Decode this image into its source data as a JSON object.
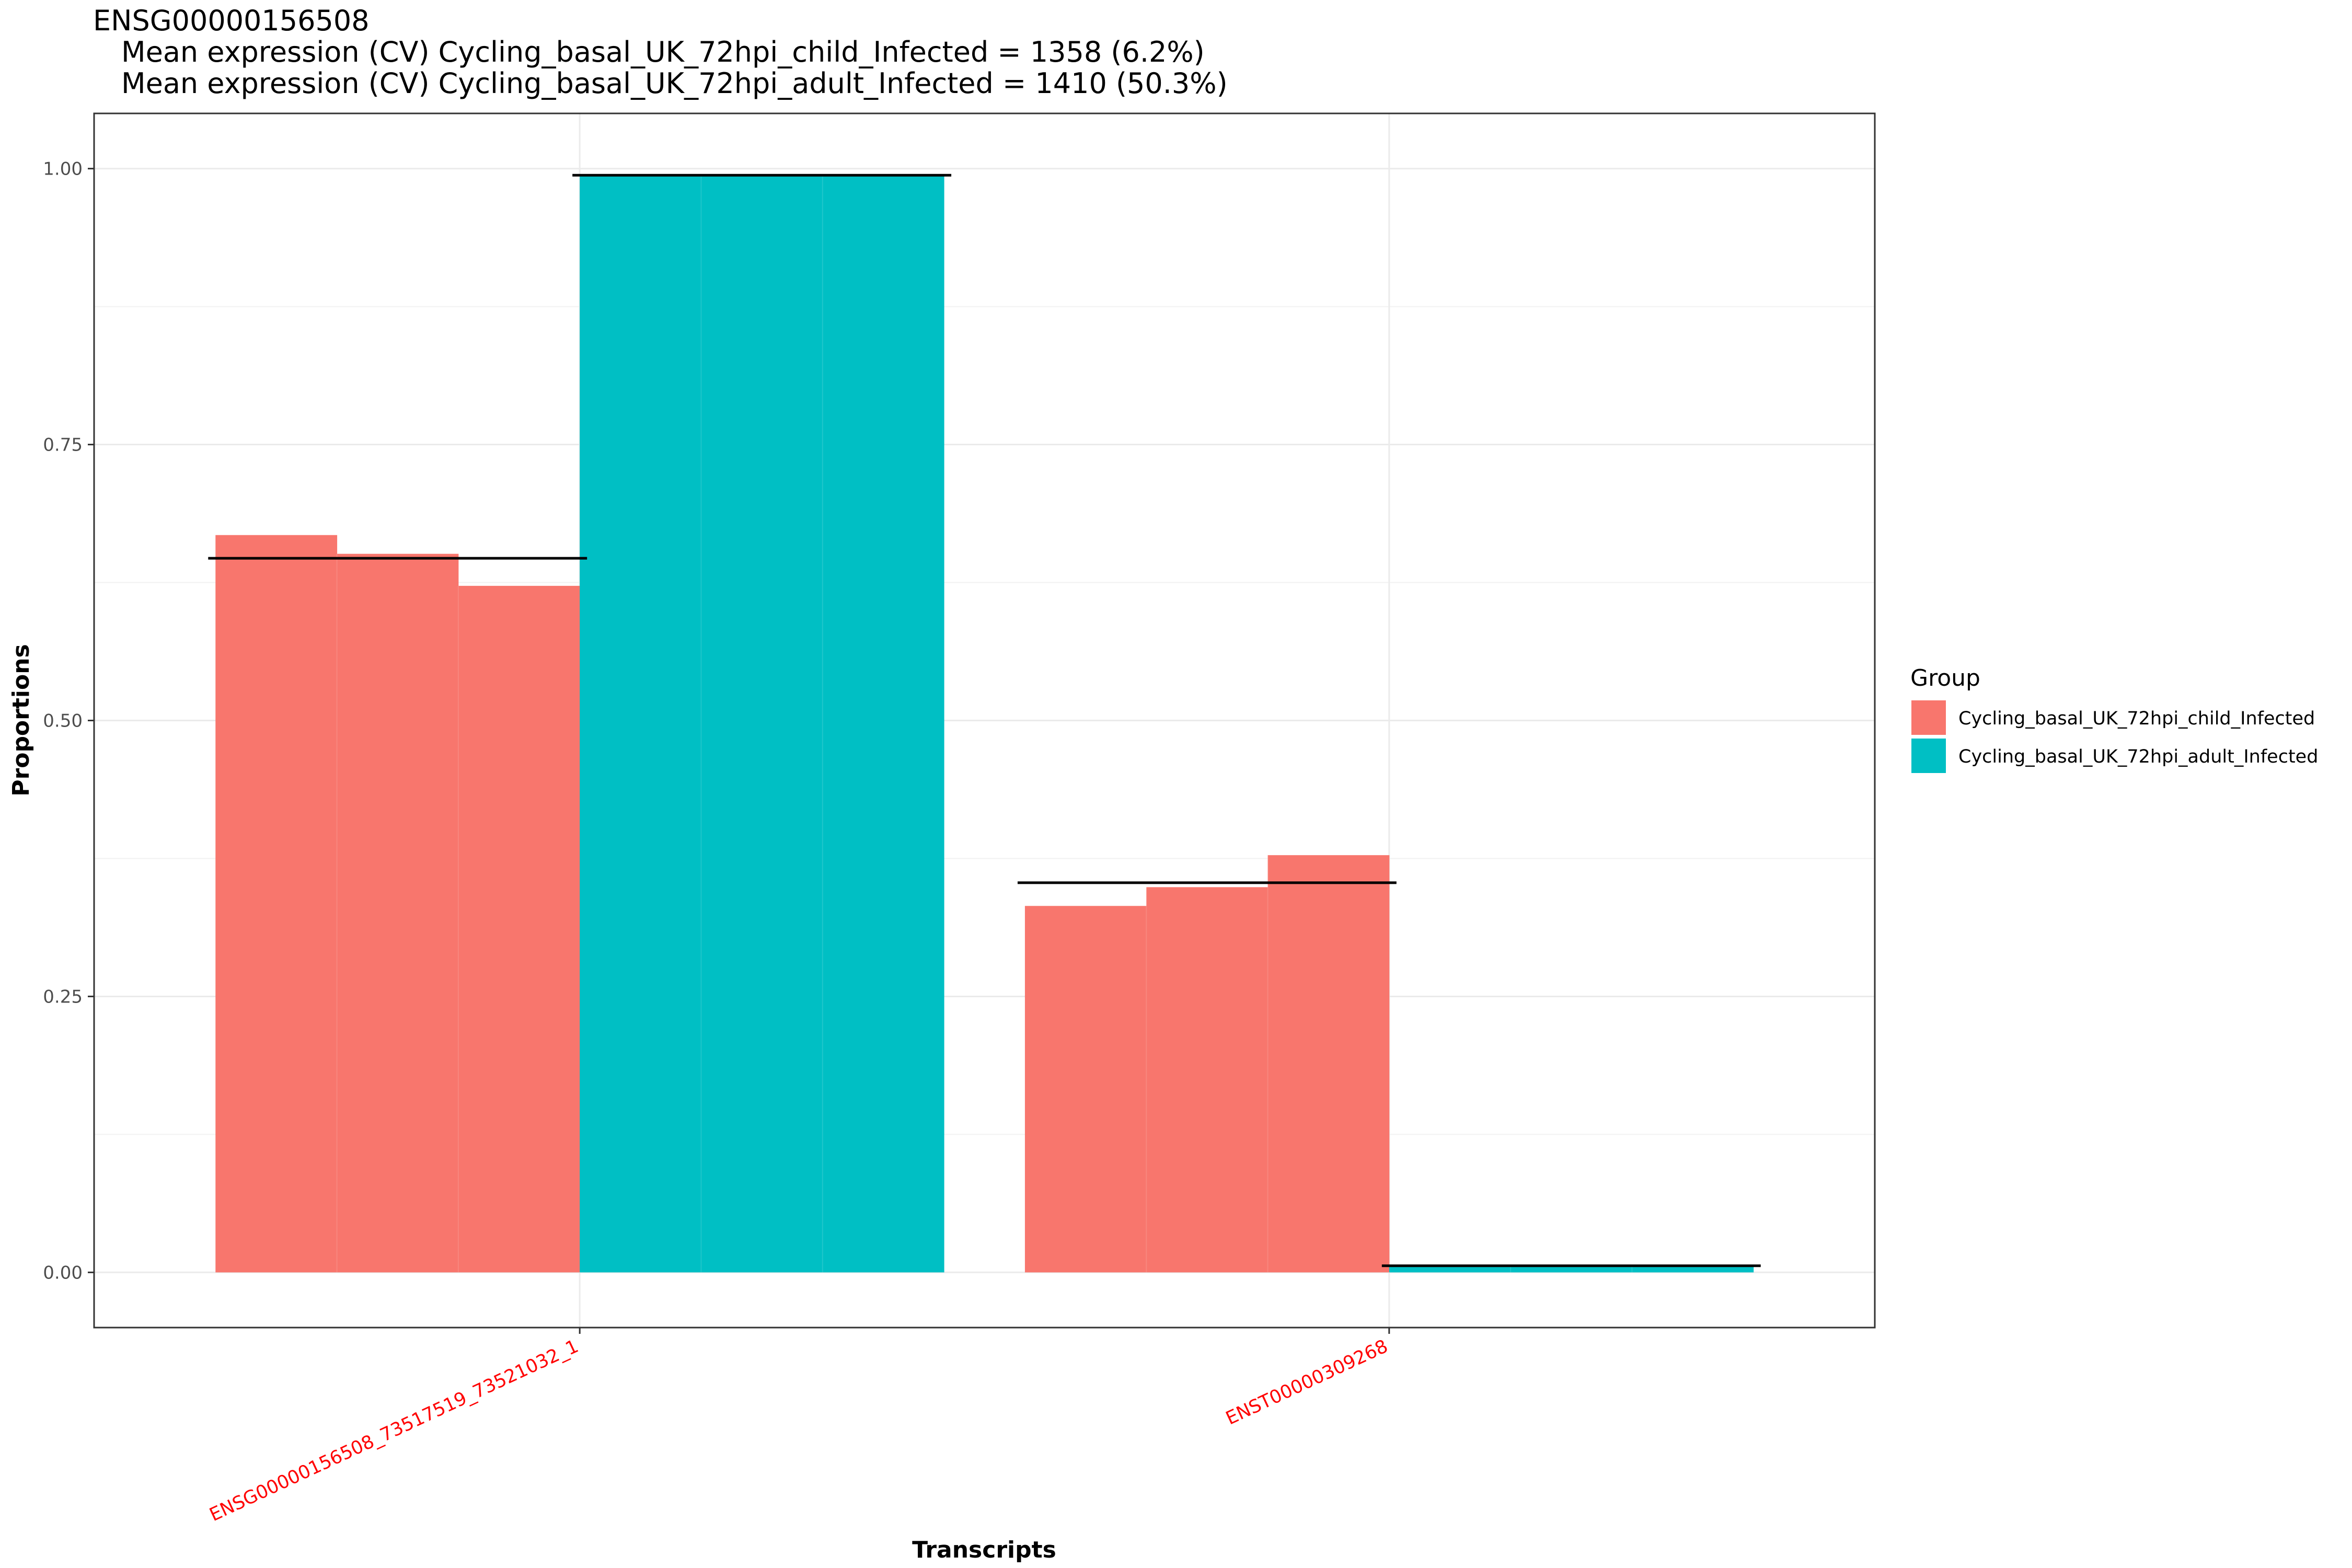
{
  "chart_data": {
    "type": "bar",
    "title": "ENSG00000156508",
    "subtitle_lines": [
      "Mean expression (CV) Cycling_basal_UK_72hpi_child_Infected = 1358 (6.2%)",
      "Mean expression (CV) Cycling_basal_UK_72hpi_adult_Infected = 1410 (50.3%)"
    ],
    "xlabel": "Transcripts",
    "ylabel": "Proportions",
    "ylim": [
      -0.05,
      1.05
    ],
    "yticks": [
      0.0,
      0.25,
      0.5,
      0.75,
      1.0
    ],
    "ytick_labels": [
      "0.00",
      "0.25",
      "0.50",
      "0.75",
      "1.00"
    ],
    "grid": true,
    "categories": [
      "ENSG00000156508_73517519_73521032_1",
      "ENST00000309268"
    ],
    "category_label_color": "#ff0000",
    "legend_title": "Group",
    "legend_position": "right",
    "series": [
      {
        "name": "Cycling_basal_UK_72hpi_child_Infected",
        "color": "#F8766D",
        "samples": [
          [
            0.668,
            0.651,
            0.622
          ],
          [
            0.332,
            0.349,
            0.378
          ]
        ],
        "mean": [
          0.647,
          0.353
        ]
      },
      {
        "name": "Cycling_basal_UK_72hpi_adult_Infected",
        "color": "#00BFC4",
        "samples": [
          [
            0.994,
            0.994,
            0.994
          ],
          [
            0.006,
            0.006,
            0.006
          ]
        ],
        "mean": [
          0.994,
          0.006
        ]
      }
    ]
  }
}
